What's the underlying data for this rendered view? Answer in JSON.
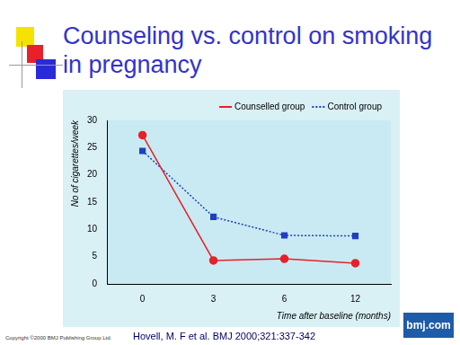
{
  "chart_data": {
    "type": "line",
    "title": "Counseling vs. control on smoking in pregnancy",
    "y_label": "No of cigarettes/week",
    "x_label": "Time after baseline (months)",
    "categories": [
      "0",
      "3",
      "6",
      "12"
    ],
    "series": [
      {
        "name": "Counselled group",
        "color": "#e8202a",
        "marker": "circle",
        "line_style": "solid",
        "values": [
          27.3,
          4.3,
          4.6,
          3.8
        ]
      },
      {
        "name": "Control group",
        "color": "#1f3fbf",
        "marker": "square",
        "line_style": "dotted",
        "values": [
          24.4,
          12.3,
          8.9,
          8.8
        ]
      }
    ],
    "ylim": [
      0,
      30
    ],
    "yticks": [
      0,
      5,
      10,
      15,
      20,
      25,
      30
    ],
    "grid": false,
    "legend": "top-right",
    "annotations": [
      "Hovell, M. F et al. BMJ 2000;321:337-342",
      "Copyright ©2000 BMJ Publishing Group Ltd.",
      "bmj.com"
    ]
  }
}
